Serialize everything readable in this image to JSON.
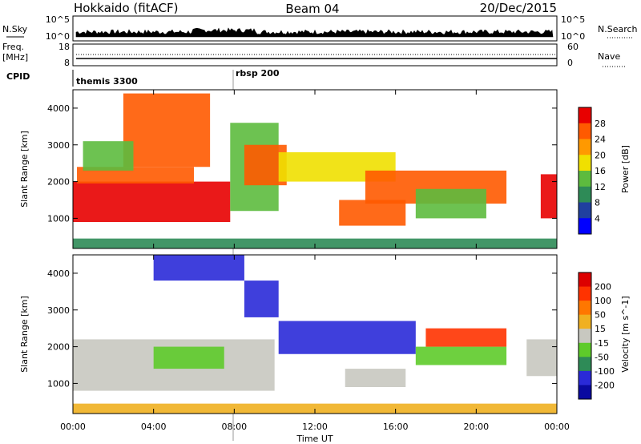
{
  "header": {
    "station": "Hokkaido (fitACF)",
    "beam": "Beam 04",
    "date": "20/Dec/2015"
  },
  "top_panels": {
    "nsky_label": "N.Sky",
    "nsky_ticks": [
      "10^5",
      "10^0"
    ],
    "nsearch_label": "N.Search",
    "nsearch_ticks": [
      "10^5",
      "10^0"
    ],
    "freq_label": "Freq.",
    "freq_unit": "[MHz]",
    "freq_ticks": [
      "18",
      "8"
    ],
    "nave_label": "Nave",
    "nave_ticks": [
      "60",
      "0"
    ],
    "cpid_label": "CPID",
    "cpid_segments": [
      {
        "label": "themis 3300",
        "start_hour": 0
      },
      {
        "label": "rbsp 200",
        "start_hour": 7.9
      }
    ]
  },
  "chart_data": [
    {
      "type": "heatmap",
      "name": "power",
      "ylabel": "Slant Range [km]",
      "ylim": [
        180,
        4500
      ],
      "yticks": [
        1000,
        2000,
        3000,
        4000
      ],
      "xlim": [
        0,
        24
      ],
      "xticks": [
        "00:00",
        "04:00",
        "08:00",
        "12:00",
        "16:00",
        "20:00",
        "00:00"
      ],
      "colorbar_label": "Power [dB]",
      "colorbar_ticks": [
        "4",
        "8",
        "12",
        "16",
        "20",
        "24",
        "28"
      ],
      "colors": [
        "#0000ff",
        "#2040a0",
        "#2e8b57",
        "#5dbb3e",
        "#f0e000",
        "#ff9900",
        "#ff5a00",
        "#e80000"
      ],
      "regions": [
        {
          "x0": 0.0,
          "x1": 7.8,
          "y0": 900,
          "y1": 2000,
          "level": 7
        },
        {
          "x0": 0.2,
          "x1": 6.0,
          "y0": 1950,
          "y1": 2400,
          "level": 6
        },
        {
          "x0": 2.5,
          "x1": 6.8,
          "y0": 2400,
          "y1": 4400,
          "level": 6
        },
        {
          "x0": 0.5,
          "x1": 3.0,
          "y0": 2300,
          "y1": 3100,
          "level": 3
        },
        {
          "x0": 7.8,
          "x1": 10.2,
          "y0": 1200,
          "y1": 3600,
          "level": 3
        },
        {
          "x0": 8.5,
          "x1": 10.6,
          "y0": 1900,
          "y1": 3000,
          "level": 6
        },
        {
          "x0": 10.2,
          "x1": 16.0,
          "y0": 2000,
          "y1": 2800,
          "level": 4
        },
        {
          "x0": 14.5,
          "x1": 21.5,
          "y0": 1400,
          "y1": 2300,
          "level": 6
        },
        {
          "x0": 13.2,
          "x1": 16.5,
          "y0": 800,
          "y1": 1500,
          "level": 6
        },
        {
          "x0": 17.0,
          "x1": 20.5,
          "y0": 1000,
          "y1": 1800,
          "level": 3
        },
        {
          "x0": 23.2,
          "x1": 24.0,
          "y0": 1000,
          "y1": 2200,
          "level": 7
        },
        {
          "x0": 0.0,
          "x1": 24.0,
          "y0": 180,
          "y1": 450,
          "level": 2
        }
      ]
    },
    {
      "type": "heatmap",
      "name": "velocity",
      "ylabel": "Slant Range [km]",
      "ylim": [
        180,
        4500
      ],
      "yticks": [
        1000,
        2000,
        3000,
        4000
      ],
      "xlim": [
        0,
        24
      ],
      "xticks": [
        "00:00",
        "04:00",
        "08:00",
        "12:00",
        "16:00",
        "20:00",
        "00:00"
      ],
      "xlabel": "Time UT",
      "colorbar_label": "Velocity [m s^-1]",
      "colorbar_ticks": [
        "200",
        "100",
        "50",
        "15",
        "-15",
        "-50",
        "-100",
        "-200"
      ],
      "colors": [
        "#0a0aa0",
        "#2a2ad8",
        "#2e8b57",
        "#5ecb2a",
        "#c8c8c0",
        "#f0b020",
        "#ff7700",
        "#ff3300",
        "#dd0000"
      ],
      "regions": [
        {
          "x0": 0.0,
          "x1": 10.0,
          "y0": 800,
          "y1": 2200,
          "level": 4
        },
        {
          "x0": 4.0,
          "x1": 7.5,
          "y0": 1400,
          "y1": 2000,
          "level": 3
        },
        {
          "x0": 4.0,
          "x1": 8.5,
          "y0": 3800,
          "y1": 4500,
          "level": 1
        },
        {
          "x0": 8.5,
          "x1": 10.2,
          "y0": 2800,
          "y1": 3800,
          "level": 1
        },
        {
          "x0": 10.2,
          "x1": 17.0,
          "y0": 1800,
          "y1": 2700,
          "level": 1
        },
        {
          "x0": 17.0,
          "x1": 21.5,
          "y0": 1500,
          "y1": 2000,
          "level": 3
        },
        {
          "x0": 17.5,
          "x1": 21.5,
          "y0": 2000,
          "y1": 2500,
          "level": 7
        },
        {
          "x0": 13.5,
          "x1": 16.5,
          "y0": 900,
          "y1": 1400,
          "level": 4
        },
        {
          "x0": 22.5,
          "x1": 24.0,
          "y0": 1200,
          "y1": 2200,
          "level": 4
        },
        {
          "x0": 0.0,
          "x1": 24.0,
          "y0": 180,
          "y1": 450,
          "level": 5
        }
      ]
    }
  ]
}
